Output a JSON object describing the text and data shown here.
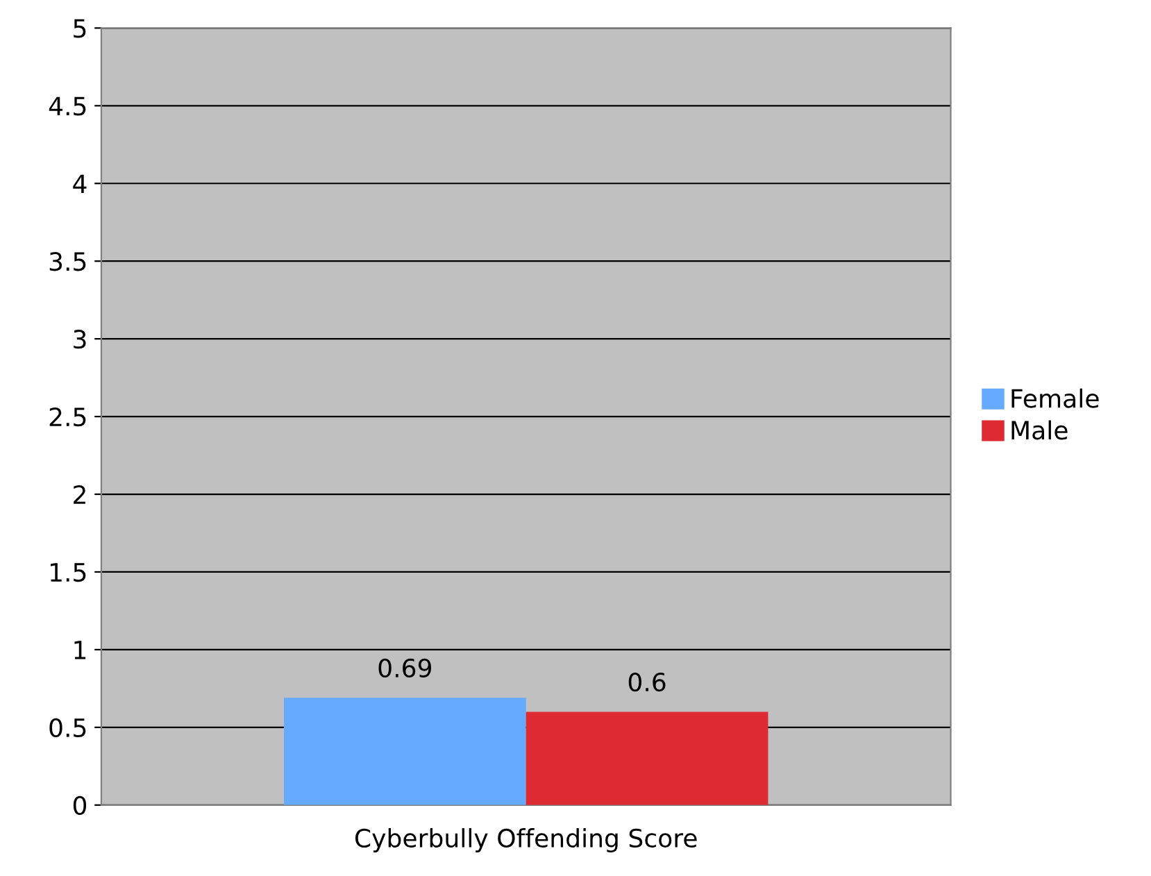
{
  "chart_data": {
    "type": "bar",
    "categories": [
      "Cyberbully Offending Score"
    ],
    "series": [
      {
        "name": "Female",
        "color": "#66aaff",
        "values": [
          0.69
        ]
      },
      {
        "name": "Male",
        "color": "#dd2a33",
        "values": [
          0.6
        ]
      }
    ],
    "ylim": [
      0,
      5
    ],
    "yticks": [
      0,
      0.5,
      1,
      1.5,
      2,
      2.5,
      3,
      3.5,
      4,
      4.5,
      5
    ],
    "grid": "y",
    "legend": "right",
    "data_labels": true
  }
}
